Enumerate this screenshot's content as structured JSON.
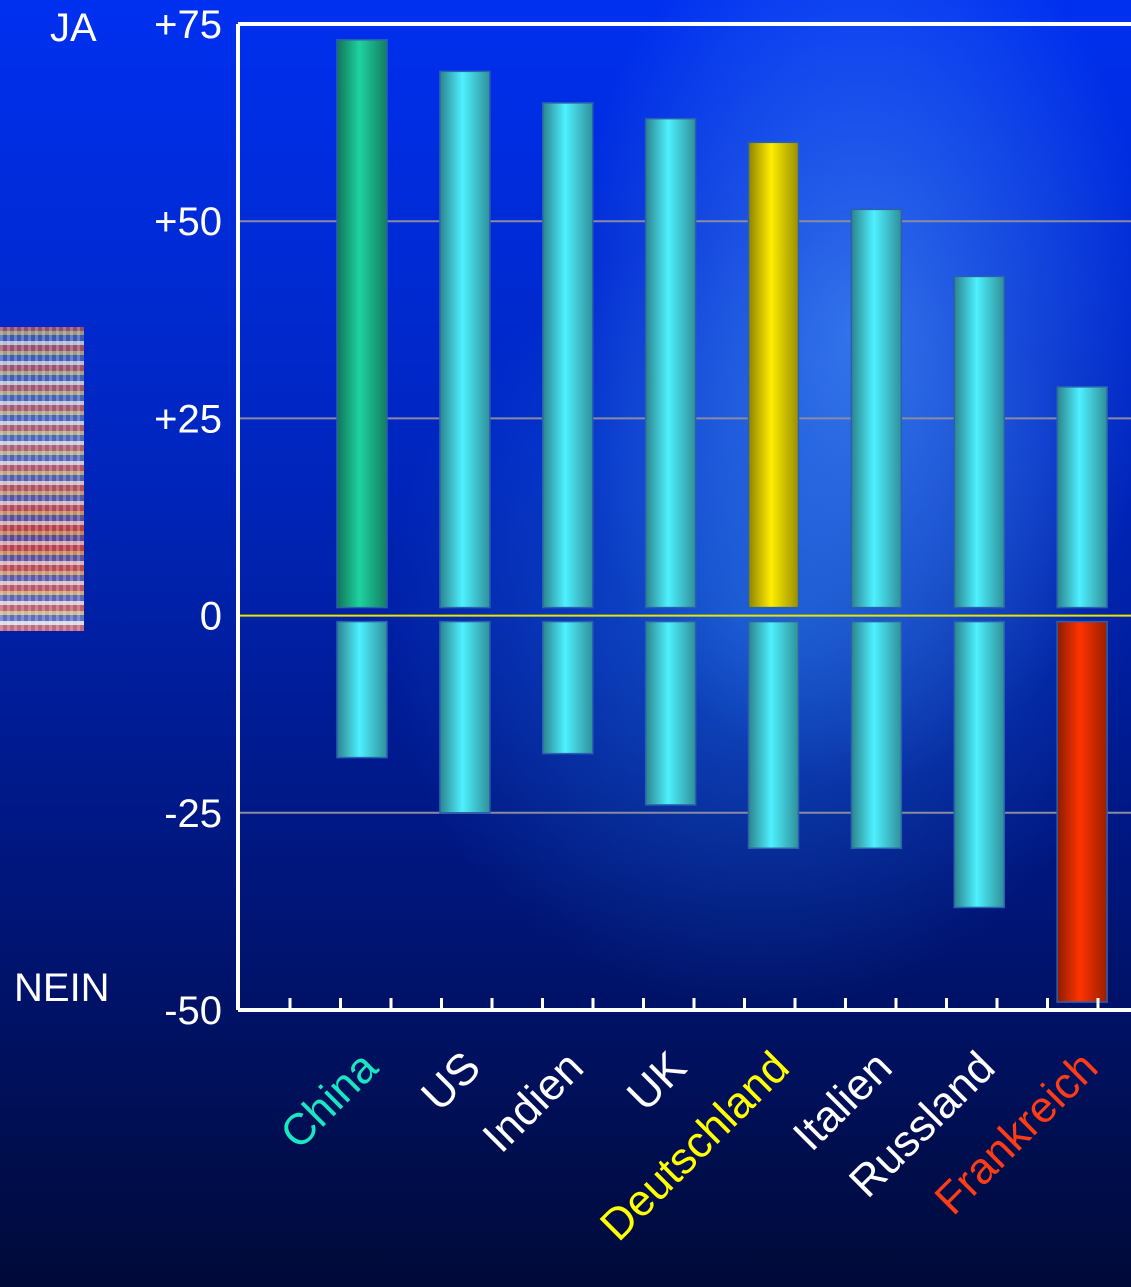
{
  "labels": {
    "ja": "JA",
    "nein": "NEIN"
  },
  "colors": {
    "bar_default": "#4ef0ff",
    "highlight_china": "#1ed2a0",
    "highlight_deutschland": "#ffee00",
    "highlight_frankreich": "#ff3300",
    "label_default": "#ffffff",
    "label_china": "#19e6c3",
    "label_deutschland": "#ffff00",
    "label_frankreich": "#ff3c14",
    "axis": "#ffffff",
    "gridline": "#8a8aa0",
    "zero_line": "#e6e600"
  },
  "chart_data": {
    "type": "bar",
    "ylim": [
      -50,
      75
    ],
    "yticks": [
      {
        "value": 75,
        "label": "+75"
      },
      {
        "value": 50,
        "label": "+50"
      },
      {
        "value": 25,
        "label": "+25"
      },
      {
        "value": 0,
        "label": "0"
      },
      {
        "value": -25,
        "label": "-25"
      },
      {
        "value": -50,
        "label": "-50"
      }
    ],
    "grid": true,
    "categories": [
      {
        "name": "China",
        "ja": 73,
        "nein": -18,
        "ja_color": "highlight_china",
        "nein_color": "bar_default",
        "label_color": "label_china"
      },
      {
        "name": "US",
        "ja": 69,
        "nein": -25,
        "ja_color": "bar_default",
        "nein_color": "bar_default",
        "label_color": "label_default"
      },
      {
        "name": "Indien",
        "ja": 65,
        "nein": -17.5,
        "ja_color": "bar_default",
        "nein_color": "bar_default",
        "label_color": "label_default"
      },
      {
        "name": "UK",
        "ja": 63,
        "nein": -24,
        "ja_color": "bar_default",
        "nein_color": "bar_default",
        "label_color": "label_default"
      },
      {
        "name": "Deutschland",
        "ja": 60,
        "nein": -29.5,
        "ja_color": "highlight_deutschland",
        "nein_color": "bar_default",
        "label_color": "label_deutschland"
      },
      {
        "name": "Italien",
        "ja": 51.5,
        "nein": -29.5,
        "ja_color": "bar_default",
        "nein_color": "bar_default",
        "label_color": "label_default"
      },
      {
        "name": "Russland",
        "ja": 43,
        "nein": -37,
        "ja_color": "bar_default",
        "nein_color": "bar_default",
        "label_color": "label_default"
      },
      {
        "name": "Frankreich",
        "ja": 29,
        "nein": -49,
        "ja_color": "bar_default",
        "nein_color": "highlight_frankreich",
        "label_color": "label_frankreich"
      }
    ]
  }
}
